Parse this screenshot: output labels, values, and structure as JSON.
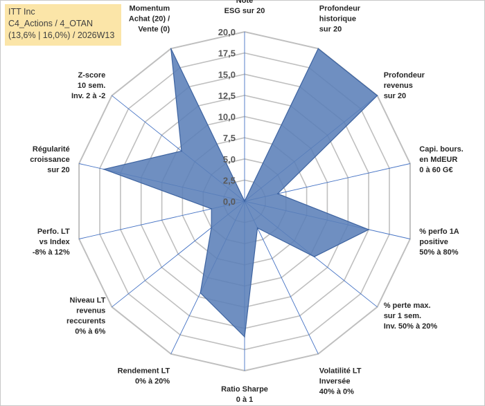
{
  "title_box": {
    "line1": "ITT Inc",
    "line2": "C4_Actions / 4_OTAN",
    "line3": "(13,6% | 16,0%) / 2026W13"
  },
  "colors": {
    "fill": "#5b80b8",
    "stroke": "#3d63a0",
    "grid": "#bfbfbf",
    "spoke": "#4472c4",
    "title_bg": "#fbe5a8"
  },
  "chart_data": {
    "type": "radar",
    "title": "",
    "rmin": 0,
    "rmax": 20,
    "ticks": [
      "0,0",
      "2,5",
      "5,0",
      "7,5",
      "10,0",
      "12,5",
      "15,0",
      "17,5",
      "20,0"
    ],
    "categories": [
      [
        "Note",
        "ESG sur 20"
      ],
      [
        "Profondeur",
        "historique",
        "sur 20"
      ],
      [
        "Profondeur",
        "revenus",
        "sur 20"
      ],
      [
        "Capi. bours.",
        "en MdEUR",
        "0 à 60 G€"
      ],
      [
        "% perfo 1A",
        "positive",
        "50% à 80%"
      ],
      [
        "% perte max.",
        "sur 1 sem.",
        "Inv. 50% à 20%"
      ],
      [
        "Volatilité LT",
        "Inversée",
        "40% à 0%"
      ],
      [
        "Ratio Sharpe",
        "0 à 1"
      ],
      [
        "Rendement LT",
        "0% à 20%"
      ],
      [
        "Niveau LT",
        "revenus",
        "reccurents",
        "0% à 6%"
      ],
      [
        "Perfo. LT",
        "vs Index",
        "-8% à 12%"
      ],
      [
        "Régularité",
        "croissance",
        "sur 20"
      ],
      [
        "Z-score",
        "10 sem.",
        "Inv. 2 à -2"
      ],
      [
        "Momentum",
        "Achat (20) /",
        "Vente (0)"
      ]
    ],
    "series": [
      {
        "name": "ITT Inc",
        "values": [
          0,
          20,
          20,
          4,
          15,
          10.5,
          3.5,
          16,
          12,
          5,
          4,
          17,
          9.5,
          20
        ]
      }
    ]
  }
}
